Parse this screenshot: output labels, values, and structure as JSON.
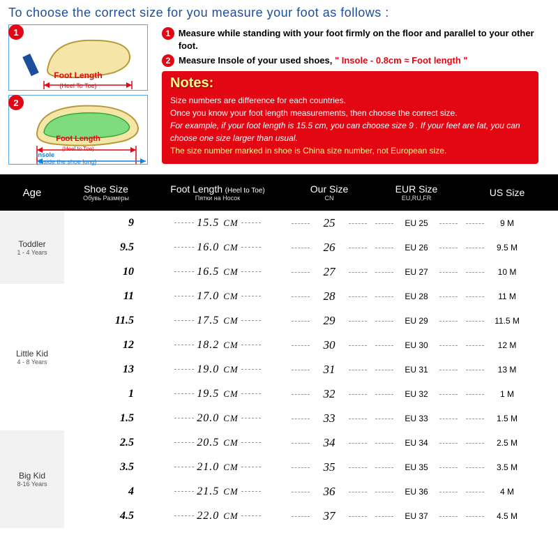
{
  "title": "To choose the correct size for you measure your foot as follows :",
  "diagram1": {
    "label": "Foot Length",
    "sub": "(Heel To Toe)"
  },
  "diagram2": {
    "label": "Foot Length",
    "sub": "(Heel to Toe)",
    "insole": "Insole",
    "insole_sub": "(Inside the shoe long)"
  },
  "instructions": {
    "line1": "Measure while standing with your foot firmly on the floor and parallel to your other foot.",
    "line2_a": "Measure Insole of your used shoes, ",
    "line2_b": "\" Insole - 0.8cm ≈ Foot length \""
  },
  "notes": {
    "title": "Notes:",
    "l1": "Size numbers are difference for each countries.",
    "l2": "Once you know your foot length measurements, then choose the correct size.",
    "l3": "For example, if your foot length is 15.5 cm, you can choose size 9 . If your feet are fat, you can choose one size larger than usual.",
    "l4": "The size number marked in shoe is China size number, not European size."
  },
  "headers": {
    "age": "Age",
    "shoe": "Shoe Size",
    "shoe_sub": "Обувь Размеры",
    "foot": "Foot Length",
    "foot_sub1": "(Heel to Toe)",
    "foot_sub2": "Пятки на Носок",
    "our": "Our Size",
    "our_sub": "CN",
    "eur": "EUR Size",
    "eur_sub": "EU,RU,FR",
    "us": "US Size"
  },
  "age_groups": [
    {
      "name": "Toddler",
      "range": "1 - 4 Years",
      "rows": 3,
      "alt": true
    },
    {
      "name": "Little Kid",
      "range": "4 - 8 Years",
      "rows": 6,
      "alt": false
    },
    {
      "name": "Big Kid",
      "range": "8-16 Years",
      "rows": 4,
      "alt": true
    }
  ],
  "rows": [
    {
      "shoe": "9",
      "foot": "15.5",
      "our": "25",
      "eur": "EU 25",
      "us": "9 M"
    },
    {
      "shoe": "9.5",
      "foot": "16.0",
      "our": "26",
      "eur": "EU 26",
      "us": "9.5 M"
    },
    {
      "shoe": "10",
      "foot": "16.5",
      "our": "27",
      "eur": "EU 27",
      "us": "10 M"
    },
    {
      "shoe": "11",
      "foot": "17.0",
      "our": "28",
      "eur": "EU 28",
      "us": "11 M"
    },
    {
      "shoe": "11.5",
      "foot": "17.5",
      "our": "29",
      "eur": "EU 29",
      "us": "11.5 M"
    },
    {
      "shoe": "12",
      "foot": "18.2",
      "our": "30",
      "eur": "EU 30",
      "us": "12 M"
    },
    {
      "shoe": "13",
      "foot": "19.0",
      "our": "31",
      "eur": "EU 31",
      "us": "13 M"
    },
    {
      "shoe": "1",
      "foot": "19.5",
      "our": "32",
      "eur": "EU 32",
      "us": "1 M"
    },
    {
      "shoe": "1.5",
      "foot": "20.0",
      "our": "33",
      "eur": "EU 33",
      "us": "1.5 M"
    },
    {
      "shoe": "2.5",
      "foot": "20.5",
      "our": "34",
      "eur": "EU 34",
      "us": "2.5 M"
    },
    {
      "shoe": "3.5",
      "foot": "21.0",
      "our": "35",
      "eur": "EU 35",
      "us": "3.5 M"
    },
    {
      "shoe": "4",
      "foot": "21.5",
      "our": "36",
      "eur": "EU 36",
      "us": "4 M"
    },
    {
      "shoe": "4.5",
      "foot": "22.0",
      "our": "37",
      "eur": "EU 37",
      "us": "4.5 M"
    }
  ],
  "colors": {
    "accent_red": "#e30613",
    "accent_blue": "#1b4f9c",
    "notes_yellow": "#fff98a"
  },
  "foot_unit": "CM"
}
